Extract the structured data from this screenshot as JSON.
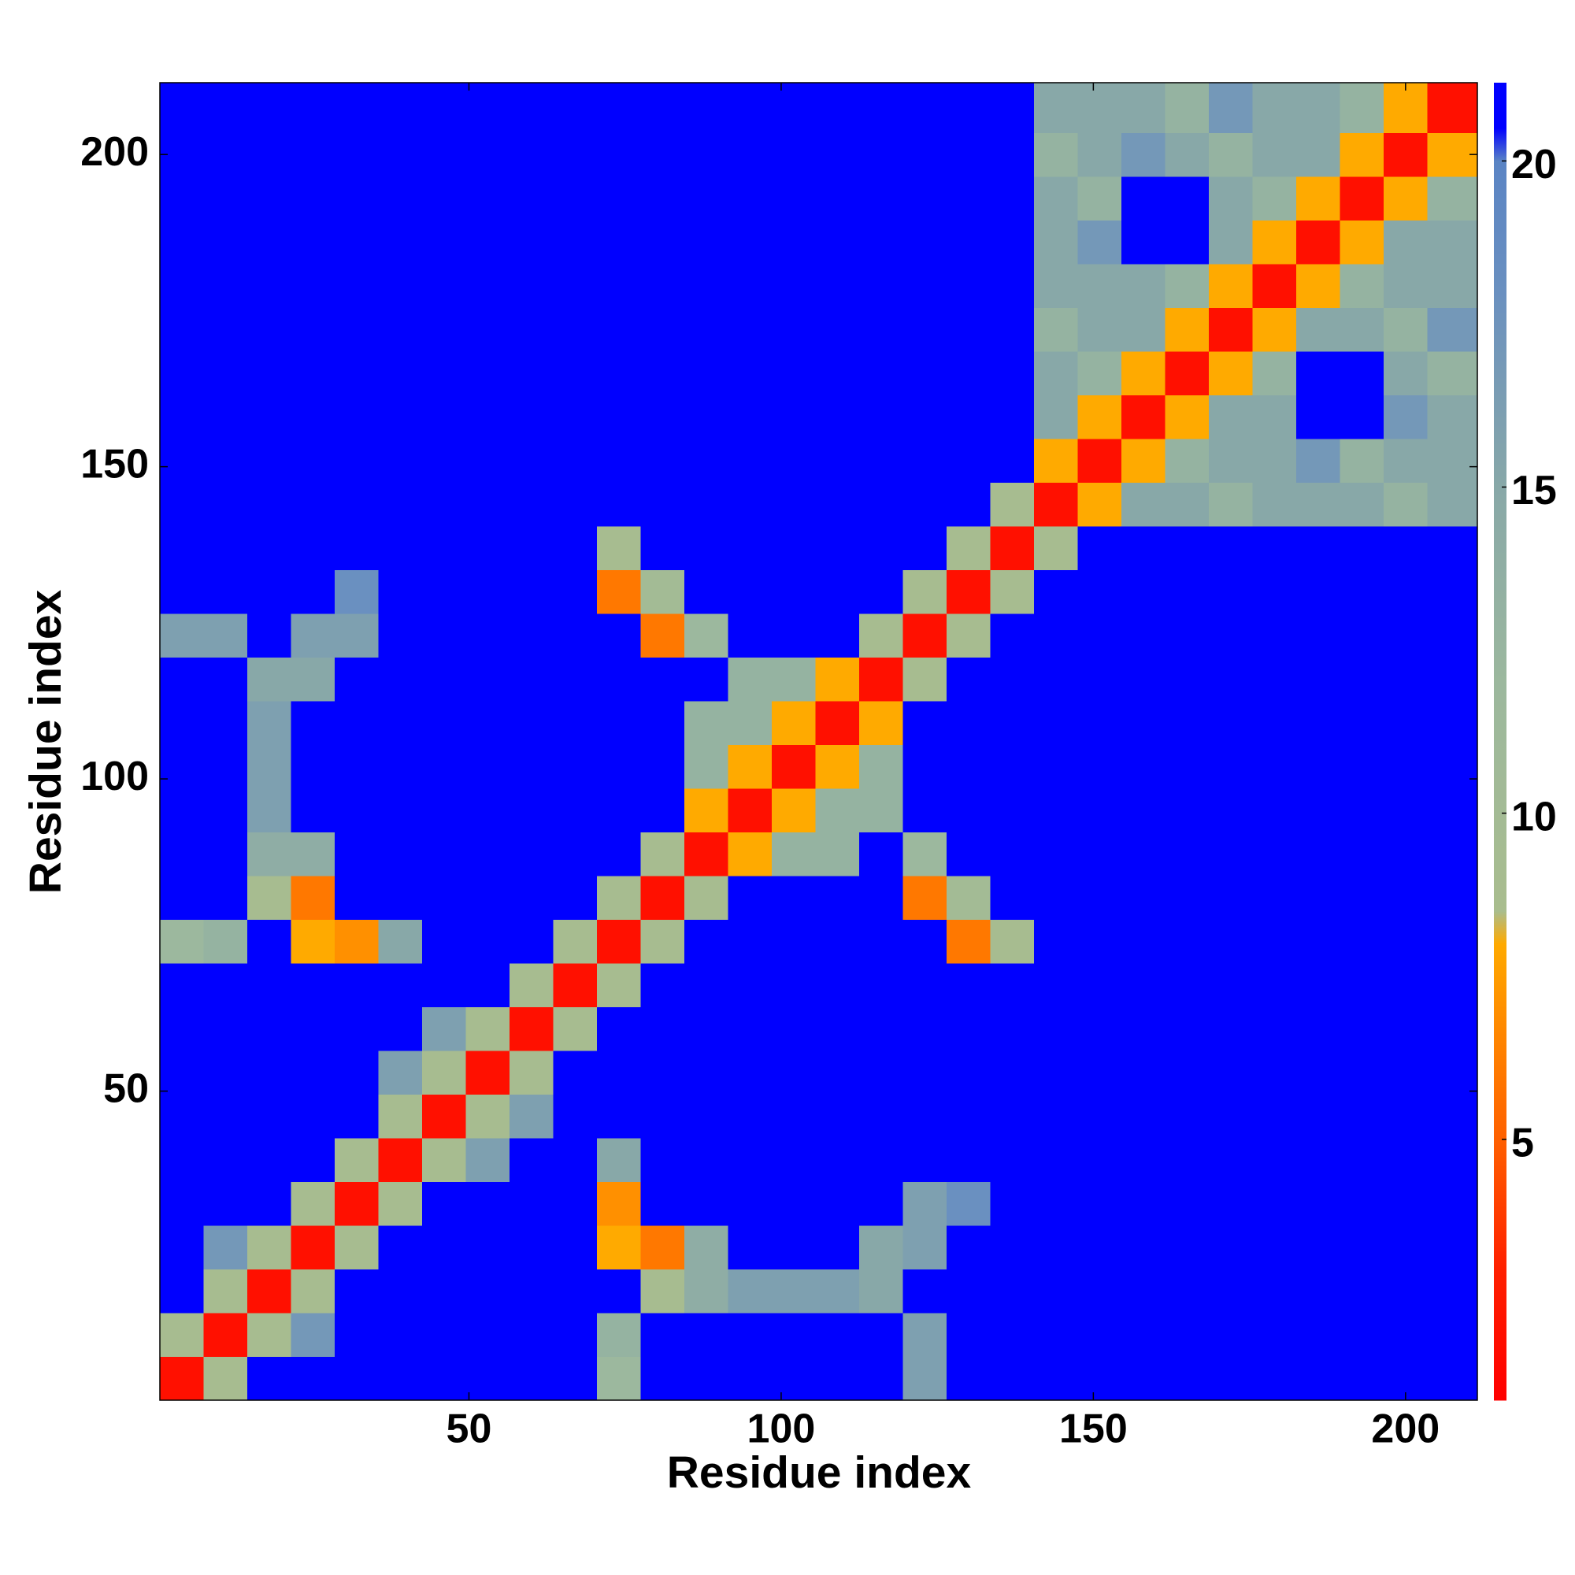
{
  "chart_data": {
    "type": "heatmap",
    "xlabel": "Residue index",
    "ylabel": "Residue index",
    "xlim": [
      0.5,
      211.5
    ],
    "ylim": [
      0.5,
      211.5
    ],
    "xticks": [
      50,
      100,
      150,
      200
    ],
    "yticks": [
      50,
      100,
      150,
      200
    ],
    "x": [
      4,
      11,
      18,
      25,
      32,
      39,
      46,
      53,
      60,
      67,
      74,
      81,
      88,
      95,
      102,
      109,
      116,
      123,
      130,
      137,
      144,
      151,
      158,
      165,
      172,
      179,
      186,
      193,
      200,
      207
    ],
    "y": [
      4,
      11,
      18,
      25,
      32,
      39,
      46,
      53,
      60,
      67,
      74,
      81,
      88,
      95,
      102,
      109,
      116,
      123,
      130,
      137,
      144,
      151,
      158,
      165,
      172,
      179,
      186,
      193,
      200,
      207
    ],
    "z": [
      [
        2,
        9,
        21,
        21,
        21,
        21,
        21,
        21,
        21,
        21,
        12,
        21,
        21,
        21,
        21,
        21,
        21,
        16,
        21,
        21,
        21,
        21,
        21,
        21,
        21,
        21,
        21,
        21,
        21,
        21
      ],
      [
        9,
        2,
        9,
        17,
        21,
        21,
        21,
        21,
        21,
        21,
        13,
        21,
        21,
        21,
        21,
        21,
        21,
        16,
        21,
        21,
        21,
        21,
        21,
        21,
        21,
        21,
        21,
        21,
        21,
        21
      ],
      [
        21,
        9,
        2,
        9,
        21,
        21,
        21,
        21,
        21,
        21,
        21,
        9,
        14,
        16,
        16,
        16,
        15,
        21,
        21,
        21,
        21,
        21,
        21,
        21,
        21,
        21,
        21,
        21,
        21,
        21
      ],
      [
        21,
        17,
        9,
        2,
        9,
        21,
        21,
        21,
        21,
        21,
        8,
        6,
        14,
        21,
        21,
        21,
        15,
        16,
        21,
        21,
        21,
        21,
        21,
        21,
        21,
        21,
        21,
        21,
        21,
        21
      ],
      [
        21,
        21,
        21,
        9,
        2,
        9,
        21,
        21,
        21,
        21,
        7,
        21,
        21,
        21,
        21,
        21,
        21,
        16,
        18,
        21,
        21,
        21,
        21,
        21,
        21,
        21,
        21,
        21,
        21,
        21
      ],
      [
        21,
        21,
        21,
        21,
        9,
        2,
        9,
        16,
        21,
        21,
        15,
        21,
        21,
        21,
        21,
        21,
        21,
        21,
        21,
        21,
        21,
        21,
        21,
        21,
        21,
        21,
        21,
        21,
        21,
        21
      ],
      [
        21,
        21,
        21,
        21,
        21,
        9,
        2,
        9,
        16,
        21,
        21,
        21,
        21,
        21,
        21,
        21,
        21,
        21,
        21,
        21,
        21,
        21,
        21,
        21,
        21,
        21,
        21,
        21,
        21,
        21
      ],
      [
        21,
        21,
        21,
        21,
        21,
        16,
        9,
        2,
        9,
        21,
        21,
        21,
        21,
        21,
        21,
        21,
        21,
        21,
        21,
        21,
        21,
        21,
        21,
        21,
        21,
        21,
        21,
        21,
        21,
        21
      ],
      [
        21,
        21,
        21,
        21,
        21,
        21,
        16,
        9,
        2,
        9,
        21,
        21,
        21,
        21,
        21,
        21,
        21,
        21,
        21,
        21,
        21,
        21,
        21,
        21,
        21,
        21,
        21,
        21,
        21,
        21
      ],
      [
        21,
        21,
        21,
        21,
        21,
        21,
        21,
        21,
        9,
        2,
        9,
        21,
        21,
        21,
        21,
        21,
        21,
        21,
        21,
        21,
        21,
        21,
        21,
        21,
        21,
        21,
        21,
        21,
        21,
        21
      ],
      [
        12,
        13,
        21,
        8,
        7,
        15,
        21,
        21,
        21,
        9,
        2,
        9,
        21,
        21,
        21,
        21,
        21,
        21,
        6,
        9,
        21,
        21,
        21,
        21,
        21,
        21,
        21,
        21,
        21,
        21
      ],
      [
        21,
        21,
        9,
        6,
        21,
        21,
        21,
        21,
        21,
        21,
        9,
        2,
        9,
        21,
        21,
        21,
        21,
        6,
        10,
        21,
        21,
        21,
        21,
        21,
        21,
        21,
        21,
        21,
        21,
        21
      ],
      [
        21,
        21,
        14,
        14,
        21,
        21,
        21,
        21,
        21,
        21,
        21,
        9,
        2,
        8,
        13,
        13,
        21,
        12,
        21,
        21,
        21,
        21,
        21,
        21,
        21,
        21,
        21,
        21,
        21,
        21
      ],
      [
        21,
        21,
        16,
        21,
        21,
        21,
        21,
        21,
        21,
        21,
        21,
        21,
        8,
        2,
        8,
        13,
        13,
        21,
        21,
        21,
        21,
        21,
        21,
        21,
        21,
        21,
        21,
        21,
        21,
        21
      ],
      [
        21,
        21,
        16,
        21,
        21,
        21,
        21,
        21,
        21,
        21,
        21,
        21,
        13,
        8,
        2,
        8,
        13,
        21,
        21,
        21,
        21,
        21,
        21,
        21,
        21,
        21,
        21,
        21,
        21,
        21
      ],
      [
        21,
        21,
        16,
        21,
        21,
        21,
        21,
        21,
        21,
        21,
        21,
        21,
        13,
        13,
        8,
        2,
        8,
        21,
        21,
        21,
        21,
        21,
        21,
        21,
        21,
        21,
        21,
        21,
        21,
        21
      ],
      [
        21,
        21,
        15,
        15,
        21,
        21,
        21,
        21,
        21,
        21,
        21,
        21,
        21,
        13,
        13,
        8,
        2,
        9,
        21,
        21,
        21,
        21,
        21,
        21,
        21,
        21,
        21,
        21,
        21,
        21
      ],
      [
        16,
        16,
        21,
        16,
        16,
        21,
        21,
        21,
        21,
        21,
        21,
        6,
        12,
        21,
        21,
        21,
        9,
        2,
        9,
        21,
        21,
        21,
        21,
        21,
        21,
        21,
        21,
        21,
        21,
        21
      ],
      [
        21,
        21,
        21,
        21,
        18,
        21,
        21,
        21,
        21,
        21,
        6,
        10,
        21,
        21,
        21,
        21,
        21,
        9,
        2,
        9,
        21,
        21,
        21,
        21,
        21,
        21,
        21,
        21,
        21,
        21
      ],
      [
        21,
        21,
        21,
        21,
        21,
        21,
        21,
        21,
        21,
        21,
        9,
        21,
        21,
        21,
        21,
        21,
        21,
        21,
        9,
        2,
        9,
        21,
        21,
        21,
        21,
        21,
        21,
        21,
        21,
        21
      ],
      [
        21,
        21,
        21,
        21,
        21,
        21,
        21,
        21,
        21,
        21,
        21,
        21,
        21,
        21,
        21,
        21,
        21,
        21,
        21,
        9,
        2,
        8,
        15,
        15,
        13,
        15,
        15,
        15,
        13,
        15
      ],
      [
        21,
        21,
        21,
        21,
        21,
        21,
        21,
        21,
        21,
        21,
        21,
        21,
        21,
        21,
        21,
        21,
        21,
        21,
        21,
        21,
        8,
        2,
        8,
        13,
        15,
        15,
        17,
        13,
        15,
        15
      ],
      [
        21,
        21,
        21,
        21,
        21,
        21,
        21,
        21,
        21,
        21,
        21,
        21,
        21,
        21,
        21,
        21,
        21,
        21,
        21,
        21,
        15,
        8,
        2,
        8,
        15,
        15,
        21,
        21,
        17,
        15
      ],
      [
        21,
        21,
        21,
        21,
        21,
        21,
        21,
        21,
        21,
        21,
        21,
        21,
        21,
        21,
        21,
        21,
        21,
        21,
        21,
        21,
        15,
        13,
        8,
        2,
        8,
        13,
        21,
        21,
        15,
        13
      ],
      [
        21,
        21,
        21,
        21,
        21,
        21,
        21,
        21,
        21,
        21,
        21,
        21,
        21,
        21,
        21,
        21,
        21,
        21,
        21,
        21,
        13,
        15,
        15,
        8,
        2,
        8,
        15,
        15,
        13,
        17
      ],
      [
        21,
        21,
        21,
        21,
        21,
        21,
        21,
        21,
        21,
        21,
        21,
        21,
        21,
        21,
        21,
        21,
        21,
        21,
        21,
        21,
        15,
        15,
        15,
        13,
        8,
        2,
        8,
        13,
        15,
        15
      ],
      [
        21,
        21,
        21,
        21,
        21,
        21,
        21,
        21,
        21,
        21,
        21,
        21,
        21,
        21,
        21,
        21,
        21,
        21,
        21,
        21,
        15,
        17,
        21,
        21,
        15,
        8,
        2,
        8,
        15,
        15
      ],
      [
        21,
        21,
        21,
        21,
        21,
        21,
        21,
        21,
        21,
        21,
        21,
        21,
        21,
        21,
        21,
        21,
        21,
        21,
        21,
        21,
        15,
        13,
        21,
        21,
        15,
        13,
        8,
        2,
        8,
        13
      ],
      [
        21,
        21,
        21,
        21,
        21,
        21,
        21,
        21,
        21,
        21,
        21,
        21,
        21,
        21,
        21,
        21,
        21,
        21,
        21,
        21,
        13,
        15,
        17,
        15,
        13,
        15,
        15,
        8,
        2,
        8
      ],
      [
        21,
        21,
        21,
        21,
        21,
        21,
        21,
        21,
        21,
        21,
        21,
        21,
        21,
        21,
        21,
        21,
        21,
        21,
        21,
        21,
        15,
        15,
        15,
        13,
        17,
        15,
        15,
        13,
        8,
        2
      ]
    ],
    "colorscale": [
      {
        "value": 1,
        "color": "#ff0000"
      },
      {
        "value": 3,
        "color": "#ff2000"
      },
      {
        "value": 5,
        "color": "#ff6000"
      },
      {
        "value": 7,
        "color": "#ff9000"
      },
      {
        "value": 8,
        "color": "#ffaa00"
      },
      {
        "value": 8.5,
        "color": "#a9bd8e"
      },
      {
        "value": 12,
        "color": "#9cb89e"
      },
      {
        "value": 15,
        "color": "#88a8a8"
      },
      {
        "value": 18,
        "color": "#6a90c0"
      },
      {
        "value": 20,
        "color": "#5a84c4"
      },
      {
        "value": 20.5,
        "color": "#0000ff"
      },
      {
        "value": 21.2,
        "color": "#0000ff"
      }
    ],
    "colorbar_lim": [
      1,
      21.2
    ],
    "colorbar_ticks": [
      5,
      10,
      15,
      20
    ]
  }
}
